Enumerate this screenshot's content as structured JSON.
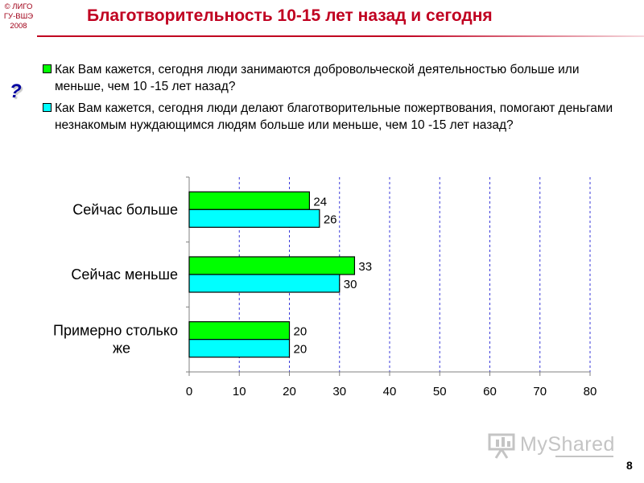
{
  "header": {
    "copyright": "© ЛИГО\nГУ-ВШЭ\n2008",
    "title": "Благотворительность 10-15 лет назад и сегодня"
  },
  "question_icon": "?",
  "legend": [
    {
      "color": "#00ff00",
      "text": "Как Вам кажется, сегодня люди занимаются добровольческой деятельностью больше или меньше, чем 10 -15 лет назад?"
    },
    {
      "color": "#00ffff",
      "text": "Как Вам кажется, сегодня люди делают благотворительные пожертвования, помогают деньгами незнакомым нуждающимся людям больше или меньше, чем 10 -15 лет назад?"
    }
  ],
  "chart_data": {
    "type": "bar",
    "orientation": "horizontal",
    "categories": [
      "Сейчас больше",
      "Сейчас меньше",
      "Примерно столько же"
    ],
    "series": [
      {
        "values": [
          24,
          33,
          20
        ],
        "color": "#00ff00"
      },
      {
        "values": [
          26,
          30,
          20
        ],
        "color": "#00ffff"
      }
    ],
    "xlim": [
      0,
      80
    ],
    "xticks": [
      0,
      10,
      20,
      30,
      40,
      50,
      60,
      70,
      80
    ],
    "grid": "vertical dashed",
    "data_labels": true
  },
  "footer": {
    "page_number": "8",
    "watermark": "MyShared"
  }
}
